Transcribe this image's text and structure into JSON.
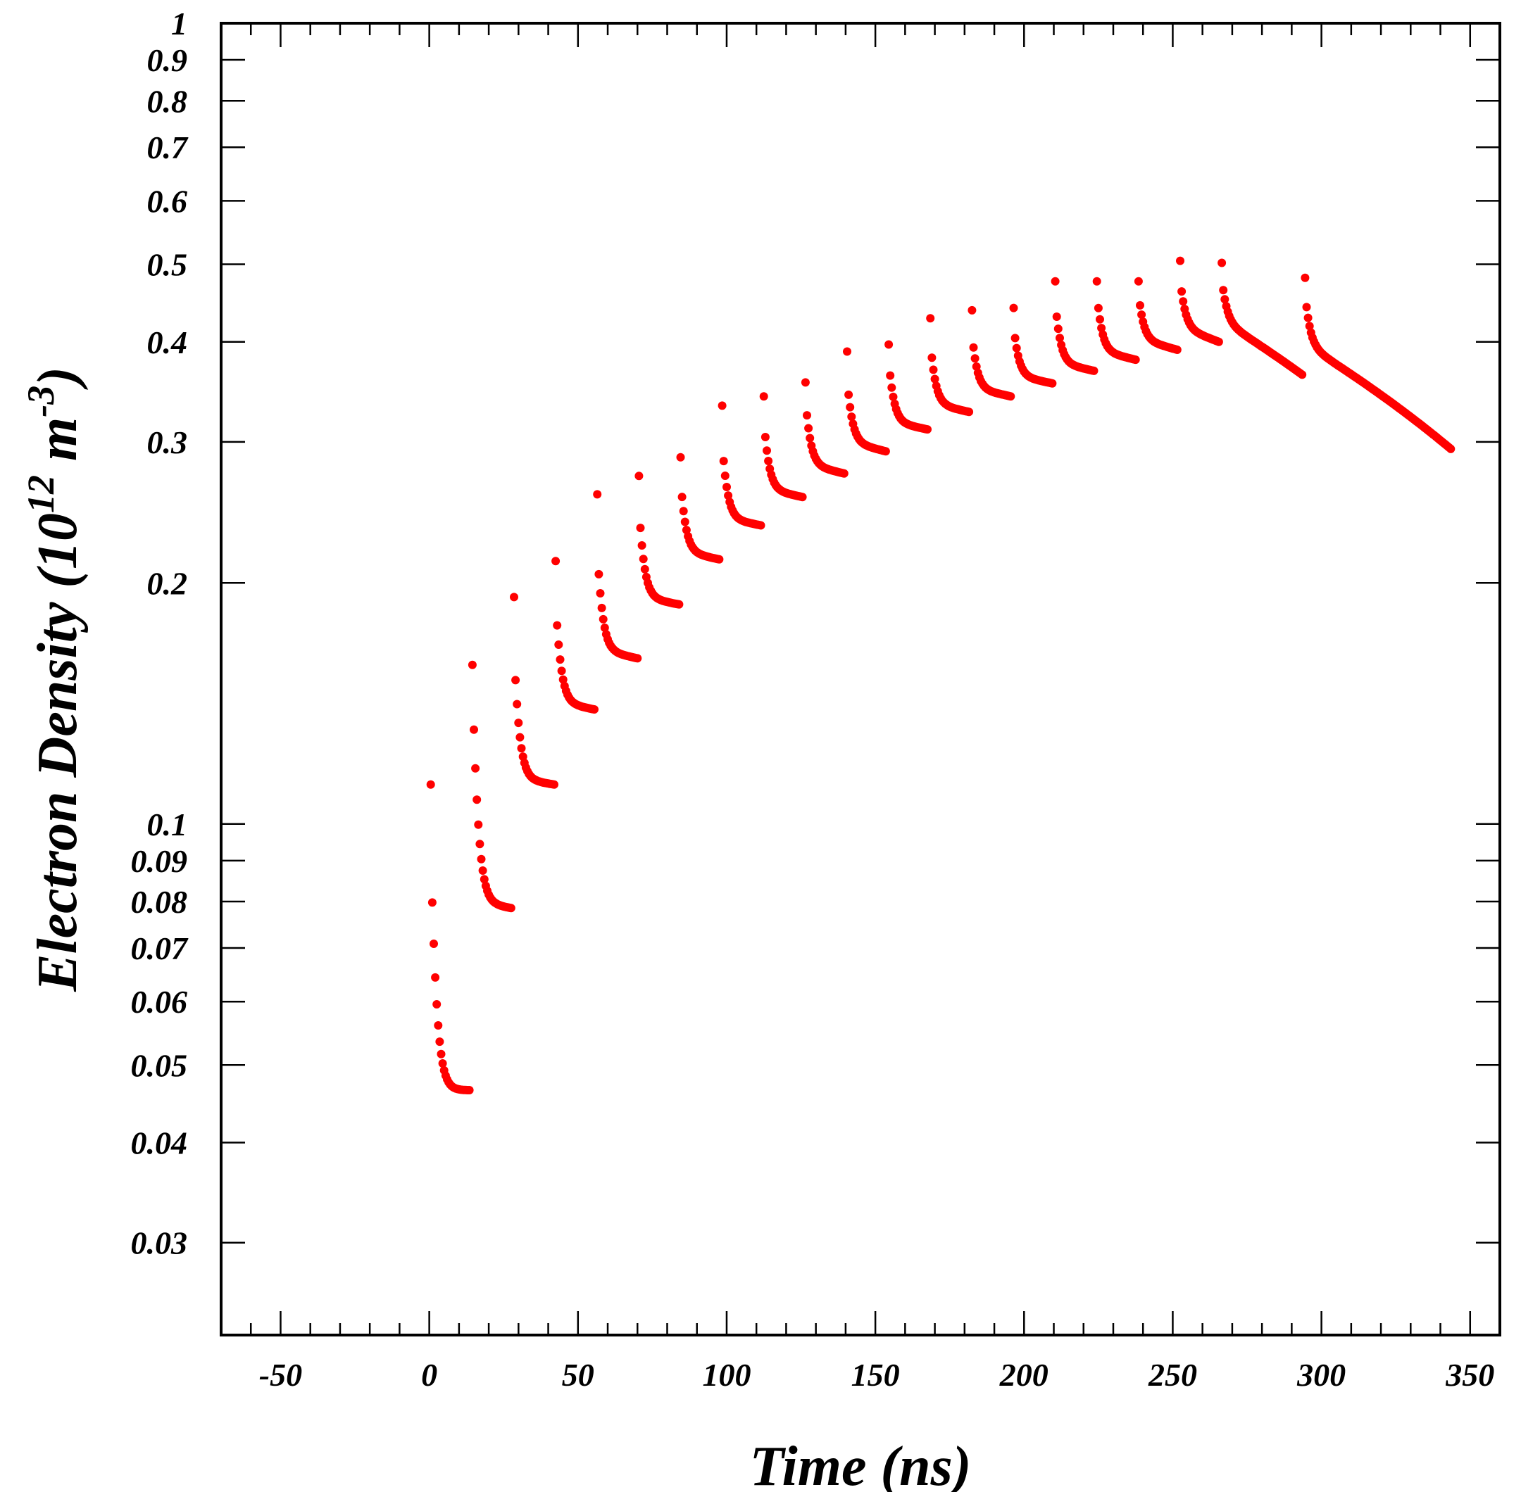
{
  "chart_data": {
    "type": "scatter",
    "xlabel": "Time (ns)",
    "ylabel_parts": [
      "Electron Density (10",
      "12",
      " m",
      "-3",
      ")"
    ],
    "xlim": [
      -70,
      360
    ],
    "ylim": [
      0.023,
      1.0
    ],
    "yscale": "log",
    "grid": false,
    "x_ticks": [
      -50,
      0,
      50,
      100,
      150,
      200,
      250,
      300,
      350
    ],
    "y_ticks": [
      0.03,
      0.04,
      0.05,
      0.06,
      0.07,
      0.08,
      0.09,
      0.1,
      0.2,
      0.3,
      0.4,
      0.5,
      0.6,
      0.7,
      0.8,
      0.9,
      1
    ],
    "y_tick_labels": [
      "0.03",
      "0.04",
      "0.05",
      "0.06",
      "0.07",
      "0.08",
      "0.09",
      "0.1",
      "0.2",
      "0.3",
      "0.4",
      "0.5",
      "0.6",
      "0.7",
      "0.8",
      "0.9",
      "1"
    ],
    "marker_color": "#ff0000",
    "series": [
      {
        "segments": [
          {
            "t0": 0.5,
            "peak": 0.112,
            "start": 0.092,
            "floor": 0.0465,
            "end": 0.0465,
            "tend": 13.5
          },
          {
            "t0": 14.5,
            "peak": 0.158,
            "start": 0.15,
            "floor": 0.08,
            "end": 0.0785,
            "tend": 27.5
          },
          {
            "t0": 28.5,
            "peak": 0.192,
            "start": 0.165,
            "floor": 0.114,
            "end": 0.112,
            "tend": 42
          },
          {
            "t0": 42.5,
            "peak": 0.213,
            "start": 0.19,
            "floor": 0.142,
            "end": 0.139,
            "tend": 55.5
          },
          {
            "t0": 56.5,
            "peak": 0.258,
            "start": 0.22,
            "floor": 0.165,
            "end": 0.161,
            "tend": 70
          },
          {
            "t0": 70.5,
            "peak": 0.272,
            "start": 0.25,
            "floor": 0.192,
            "end": 0.188,
            "tend": 84
          },
          {
            "t0": 84.5,
            "peak": 0.287,
            "start": 0.27,
            "floor": 0.219,
            "end": 0.214,
            "tend": 97.5
          },
          {
            "t0": 98.5,
            "peak": 0.333,
            "start": 0.3,
            "floor": 0.241,
            "end": 0.236,
            "tend": 111.5
          },
          {
            "t0": 112.5,
            "peak": 0.342,
            "start": 0.32,
            "floor": 0.262,
            "end": 0.256,
            "tend": 125.5
          },
          {
            "t0": 126.5,
            "peak": 0.356,
            "start": 0.34,
            "floor": 0.281,
            "end": 0.274,
            "tend": 139.5
          },
          {
            "t0": 140.5,
            "peak": 0.389,
            "start": 0.36,
            "floor": 0.3,
            "end": 0.292,
            "tend": 153.5
          },
          {
            "t0": 154.5,
            "peak": 0.397,
            "start": 0.38,
            "floor": 0.318,
            "end": 0.311,
            "tend": 167.5
          },
          {
            "t0": 168.5,
            "peak": 0.428,
            "start": 0.4,
            "floor": 0.335,
            "end": 0.327,
            "tend": 181.5
          },
          {
            "t0": 182.5,
            "peak": 0.438,
            "start": 0.41,
            "floor": 0.35,
            "end": 0.342,
            "tend": 195.5
          },
          {
            "t0": 196.5,
            "peak": 0.441,
            "start": 0.42,
            "floor": 0.363,
            "end": 0.355,
            "tend": 209.5
          },
          {
            "t0": 210.5,
            "peak": 0.476,
            "start": 0.45,
            "floor": 0.377,
            "end": 0.368,
            "tend": 223.5
          },
          {
            "t0": 224.5,
            "peak": 0.476,
            "start": 0.46,
            "floor": 0.39,
            "end": 0.38,
            "tend": 237.5
          },
          {
            "t0": 238.5,
            "peak": 0.476,
            "start": 0.46,
            "floor": 0.403,
            "end": 0.391,
            "tend": 251.5
          },
          {
            "t0": 252.5,
            "peak": 0.505,
            "start": 0.48,
            "floor": 0.417,
            "end": 0.4,
            "tend": 265.5
          },
          {
            "t0": 266.5,
            "peak": 0.502,
            "start": 0.48,
            "floor": 0.425,
            "end": 0.364,
            "tend": 293.5
          },
          {
            "t0": 294.5,
            "peak": 0.481,
            "start": 0.46,
            "floor": 0.397,
            "end": 0.294,
            "tend": 343.5
          }
        ]
      }
    ]
  }
}
